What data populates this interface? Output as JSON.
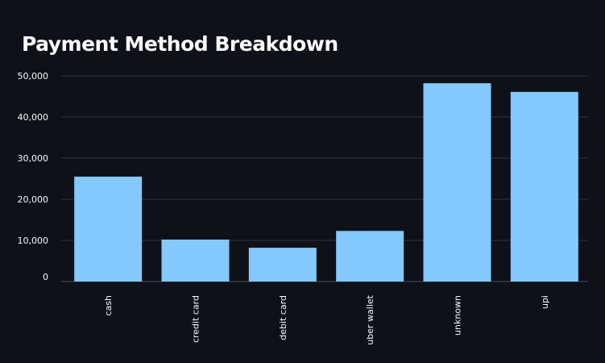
{
  "page": {
    "title": "Payment Method Breakdown"
  },
  "chart_data": {
    "type": "bar",
    "title": "Payment Method Breakdown",
    "xlabel": "",
    "ylabel": "",
    "categories": [
      "cash",
      "credit card",
      "debit card",
      "uber wallet",
      "unknown",
      "upi"
    ],
    "values": [
      25500,
      10200,
      8200,
      12300,
      48200,
      46100
    ],
    "ylim": [
      0,
      50000
    ],
    "yticks": [
      0,
      10000,
      20000,
      30000,
      40000,
      50000
    ],
    "ytick_labels": [
      "0",
      "10,000",
      "20,000",
      "30,000",
      "40,000",
      "50,000"
    ],
    "grid": true,
    "legend": "none",
    "colors": {
      "background": "#0e1117",
      "bar": "#83c9ff",
      "grid": "#31333f",
      "text": "#fafafa"
    }
  }
}
